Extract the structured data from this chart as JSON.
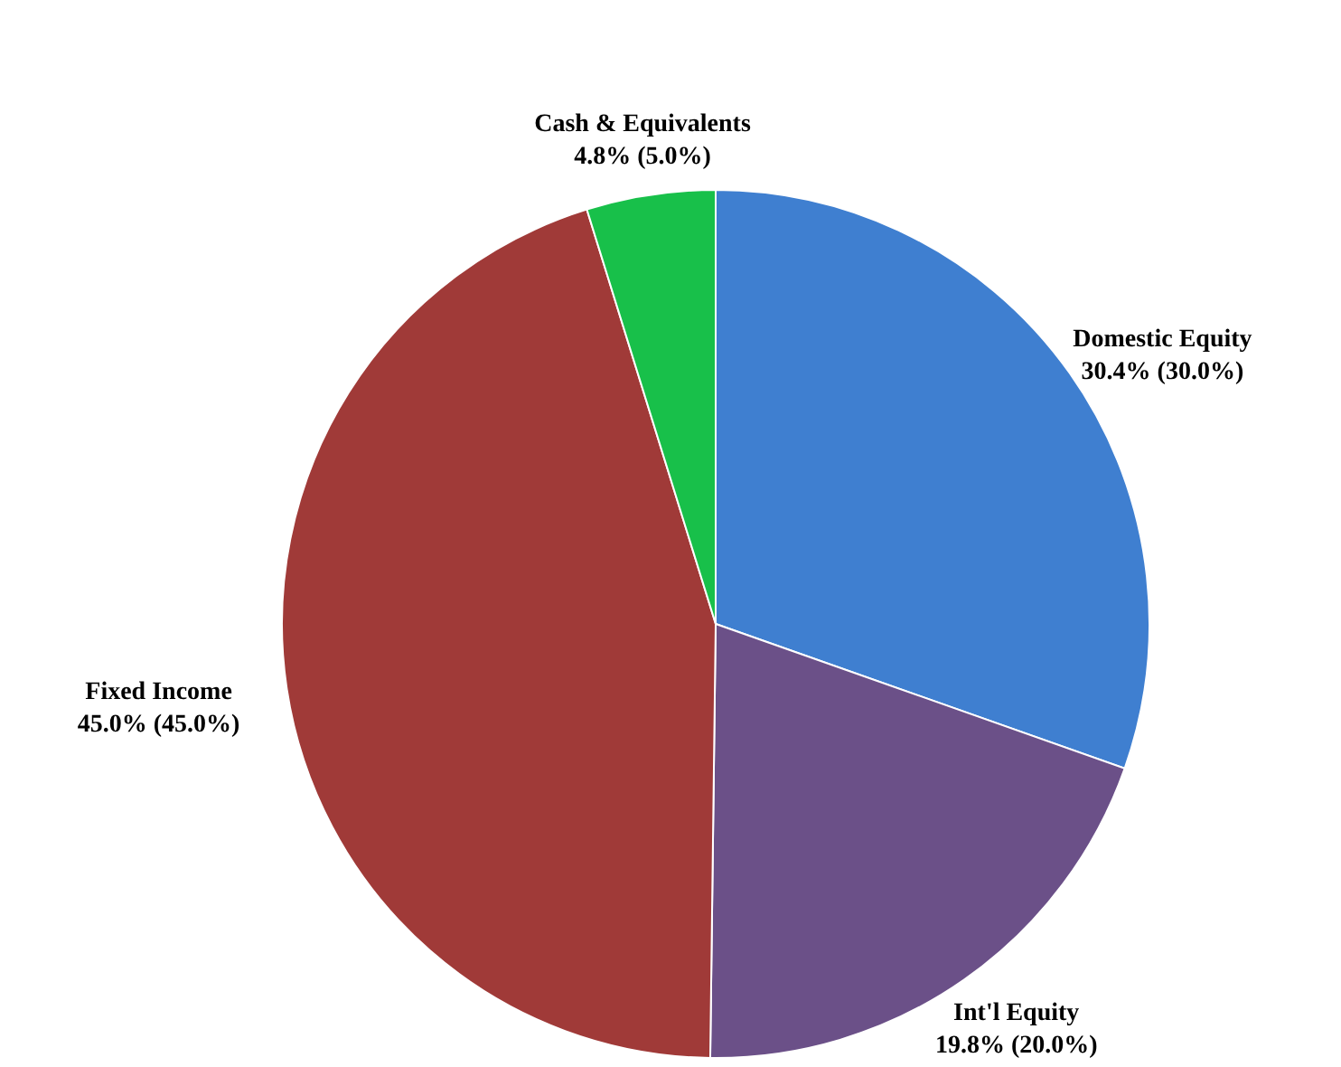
{
  "chart_data": {
    "type": "pie",
    "categories": [
      "Domestic Equity",
      "Int'l Equity",
      "Fixed Income",
      "Cash & Equivalents"
    ],
    "values": [
      30.4,
      19.8,
      45.0,
      4.8
    ],
    "value_labels": [
      "30.4% (30.0%)",
      "19.8% (20.0%)",
      "45.0% (45.0%)",
      "4.8% (5.0%)"
    ],
    "colors": [
      "#3f7fd0",
      "#6b5088",
      "#a03a38",
      "#18c04a"
    ]
  }
}
